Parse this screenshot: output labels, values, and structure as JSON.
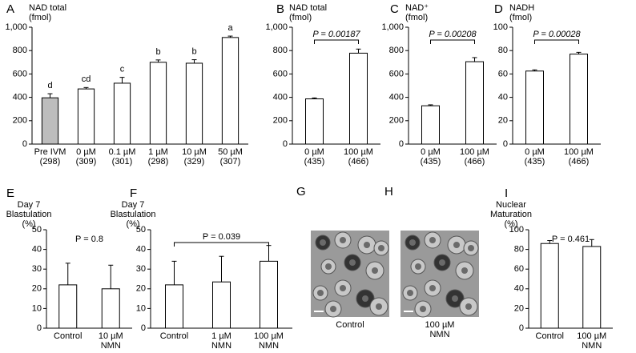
{
  "chart_data": [
    {
      "type": "bar",
      "panel": "A",
      "ylabel": [
        "NAD total",
        "(fmol)"
      ],
      "categories": [
        [
          "Pre IVM",
          "(298)"
        ],
        [
          "0 µM",
          "(309)"
        ],
        [
          "0.1 µM",
          "(301)"
        ],
        [
          "1 µM",
          "(298)"
        ],
        [
          "10 µM",
          "(329)"
        ],
        [
          "50 µM",
          "(307)"
        ]
      ],
      "values": [
        396,
        472,
        521,
        700,
        692,
        912
      ],
      "errors": [
        35,
        12,
        50,
        20,
        30,
        12
      ],
      "value_labels": [
        "d",
        "cd",
        "c",
        "b",
        "b",
        "a"
      ],
      "colors": [
        "#bdbdbd",
        "#ffffff",
        "#ffffff",
        "#ffffff",
        "#ffffff",
        "#ffffff"
      ],
      "ylim": [
        0,
        1000
      ],
      "yticks": [
        0,
        200,
        400,
        600,
        800,
        {
          "value": 1000,
          "label": "1,000"
        }
      ]
    },
    {
      "type": "bar",
      "panel": "B",
      "ylabel": [
        "NAD total",
        "(fmol)"
      ],
      "categories": [
        [
          "0 µM",
          "(435)"
        ],
        [
          "100 µM",
          "(466)"
        ]
      ],
      "values": [
        387,
        778
      ],
      "errors": [
        8,
        35
      ],
      "color": "#ffffff",
      "p_label": "P = 0.00187",
      "p_bracket": true,
      "p_italic": true,
      "ylim": [
        0,
        1000
      ],
      "yticks": [
        0,
        200,
        400,
        600,
        800,
        {
          "value": 1000,
          "label": "1,000"
        }
      ]
    },
    {
      "type": "bar",
      "panel": "C",
      "ylabel": [
        "NAD⁺",
        "(fmol)"
      ],
      "categories": [
        [
          "0 µM",
          "(435)"
        ],
        [
          "100 µM",
          "(466)"
        ]
      ],
      "values": [
        328,
        705
      ],
      "errors": [
        8,
        35
      ],
      "color": "#ffffff",
      "p_label": "P = 0.00208",
      "p_bracket": true,
      "p_italic": true,
      "ylim": [
        0,
        1000
      ],
      "yticks": [
        0,
        200,
        400,
        600,
        800,
        {
          "value": 1000,
          "label": "1,000"
        }
      ]
    },
    {
      "type": "bar",
      "panel": "D",
      "ylabel": [
        "NADH",
        "(fmol)"
      ],
      "categories": [
        [
          "0 µM",
          "(435)"
        ],
        [
          "100 µM",
          "(466)"
        ]
      ],
      "values": [
        62.5,
        77
      ],
      "errors": [
        1,
        1.5
      ],
      "color": "#ffffff",
      "p_label": "P = 0.00028",
      "p_bracket": true,
      "p_italic": true,
      "ylim": [
        0,
        100
      ],
      "yticks": [
        0,
        20,
        40,
        60,
        80,
        100
      ]
    },
    {
      "type": "bar",
      "panel": "E",
      "ylabel": [
        "Day 7",
        "Blastulation",
        "(%)"
      ],
      "categories": [
        [
          "Control"
        ],
        [
          "10 µM",
          "NMN"
        ]
      ],
      "values": [
        22,
        20
      ],
      "errors": [
        11,
        12
      ],
      "color": "#ffffff",
      "p_label": "P = 0.8",
      "p_bracket": false,
      "p_italic": false,
      "ylim": [
        0,
        50
      ],
      "yticks": [
        0,
        10,
        20,
        30,
        40,
        50
      ]
    },
    {
      "type": "bar",
      "panel": "F",
      "ylabel": [
        "Day 7",
        "Blastulation",
        "(%)"
      ],
      "categories": [
        [
          "Control"
        ],
        [
          "1 µM",
          "NMN"
        ],
        [
          "100 µM",
          "NMN"
        ]
      ],
      "values": [
        22,
        23.5,
        34
      ],
      "errors": [
        12,
        13,
        8
      ],
      "color": "#ffffff",
      "p_label": "P = 0.039",
      "p_bracket": true,
      "p_italic": false,
      "ylim": [
        0,
        50
      ],
      "yticks": [
        0,
        10,
        20,
        30,
        40,
        50
      ]
    },
    {
      "type": "image",
      "panel": "G",
      "caption": [
        "Control"
      ]
    },
    {
      "type": "image",
      "panel": "H",
      "caption": [
        "100 µM",
        "NMN"
      ]
    },
    {
      "type": "bar",
      "panel": "I",
      "ylabel": [
        "Nuclear",
        "Maturation",
        "(%)"
      ],
      "categories": [
        [
          "Control"
        ],
        [
          "100 µM",
          "NMN"
        ]
      ],
      "values": [
        86,
        83
      ],
      "errors": [
        3,
        7
      ],
      "color": "#ffffff",
      "p_label": "P = 0.461",
      "p_bracket": false,
      "p_italic": false,
      "ylim": [
        0,
        100
      ],
      "yticks": [
        0,
        20,
        40,
        60,
        80,
        100
      ]
    }
  ]
}
